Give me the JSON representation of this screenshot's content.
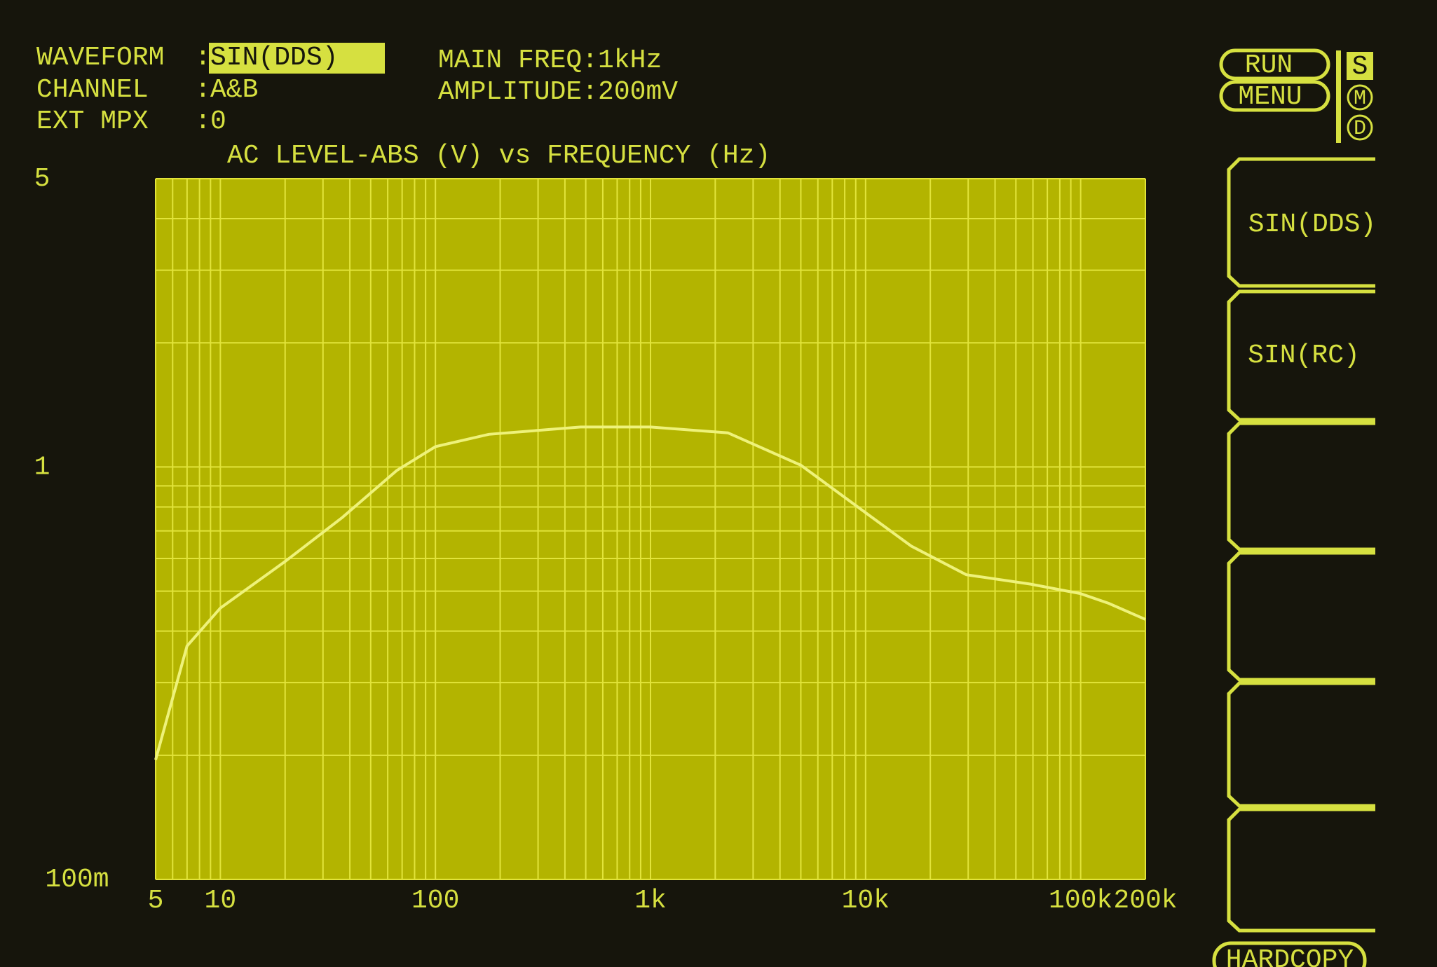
{
  "header": {
    "rows": [
      {
        "label": "WAVEFORM",
        "value": "SIN(DDS)"
      },
      {
        "label": "CHANNEL",
        "value": "A&B"
      },
      {
        "label": "EXT MPX",
        "value": "0"
      }
    ],
    "separator": ":",
    "settings": [
      "MAIN FREQ:1kHz",
      "AMPLITUDE:200mV"
    ]
  },
  "controls": {
    "buttons": [
      "RUN",
      "MENU"
    ],
    "modes": [
      "S",
      "M",
      "D"
    ],
    "softkeys": [
      "SIN(DDS)",
      "SIN(RC)"
    ],
    "hardcopy": "HARDCOPY"
  },
  "chart_data": {
    "type": "line",
    "title": "AC LEVEL-ABS (V) vs FREQUENCY (Hz)",
    "xlog": true,
    "ylog": true,
    "color": "#eef27a",
    "grid": true,
    "x": [
      5,
      7,
      10,
      20,
      37,
      66,
      100,
      177,
      473,
      1000,
      2290,
      5000,
      10000,
      16300,
      29400,
      58600,
      100000,
      135000,
      200000
    ],
    "values": [
      0.195,
      0.368,
      0.455,
      0.59,
      0.755,
      0.98,
      1.12,
      1.2,
      1.25,
      1.25,
      1.21,
      1.01,
      0.775,
      0.643,
      0.548,
      0.52,
      0.493,
      0.467,
      0.427
    ],
    "xlim": [
      5,
      200000
    ],
    "ylim": [
      0.1,
      5
    ],
    "xticks": [
      5,
      10,
      100,
      {
        "value": 1000,
        "label": "1k"
      },
      {
        "value": 10000,
        "label": "10k"
      },
      {
        "value": 100000,
        "label": "100k"
      },
      {
        "value": 200000,
        "label": "200k"
      }
    ],
    "yticks": [
      {
        "value": 0.1,
        "label": "100m"
      },
      1,
      5
    ],
    "xminor": [
      6,
      7,
      8,
      9,
      20,
      30,
      40,
      50,
      60,
      70,
      80,
      90,
      200,
      300,
      400,
      500,
      600,
      700,
      800,
      900,
      2000,
      3000,
      4000,
      5000,
      6000,
      7000,
      8000,
      9000,
      20000,
      30000,
      40000,
      50000,
      60000,
      70000,
      80000,
      90000
    ],
    "yminor": [
      0.2,
      0.3,
      0.4,
      0.5,
      0.6,
      0.7,
      0.8,
      0.9,
      2,
      3,
      4
    ]
  }
}
